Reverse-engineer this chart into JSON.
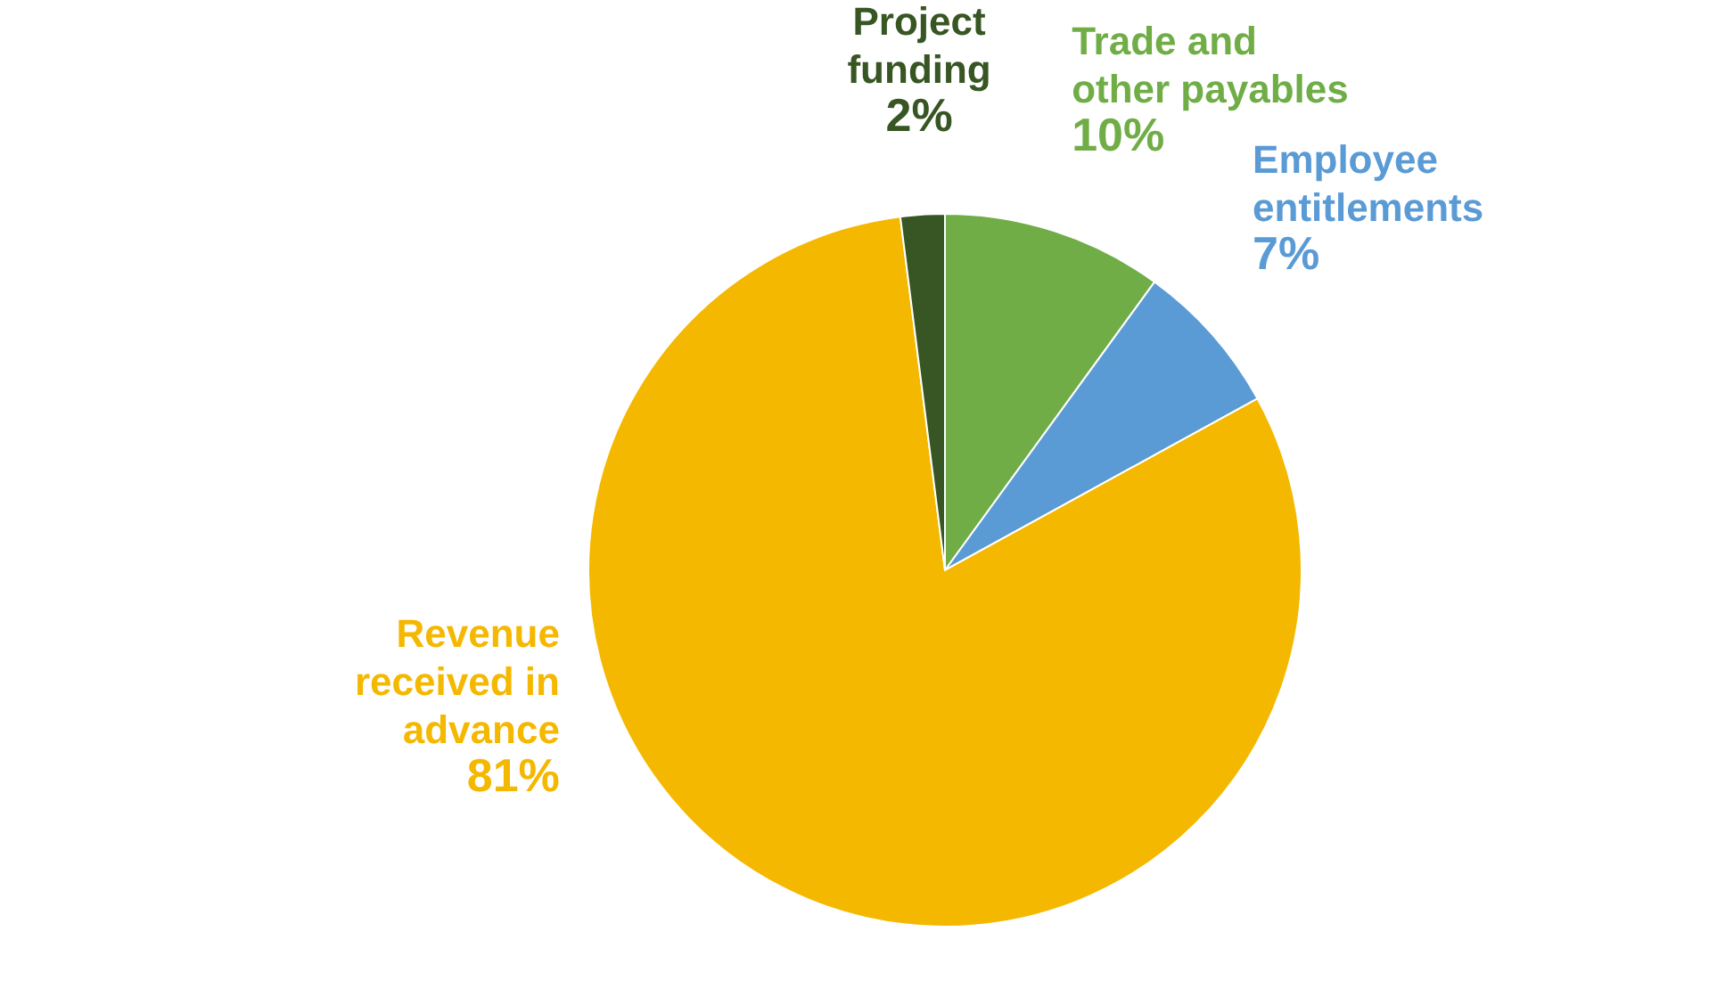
{
  "chart_data": {
    "type": "pie",
    "categories": [
      "Trade and other payables",
      "Employee entitlements",
      "Revenue received in advance",
      "Project funding"
    ],
    "values": [
      10,
      7,
      81,
      2
    ],
    "colors": [
      "#70ad47",
      "#5b9bd5",
      "#f5b800",
      "#375623"
    ],
    "value_labels": [
      "10%",
      "7%",
      "81%",
      "2%"
    ]
  }
}
